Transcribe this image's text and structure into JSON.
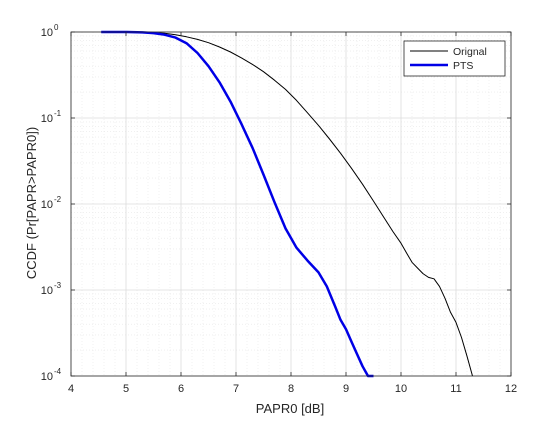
{
  "chart_data": {
    "type": "line",
    "title": "",
    "xlabel": "PAPR0 [dB]",
    "ylabel": "CCDF (Pr[PAPR>PAPR0])",
    "xlim": [
      4,
      12
    ],
    "ylim": [
      0.0001,
      1
    ],
    "yscale": "log",
    "grid": true,
    "minor_grid": true,
    "legend_position": "top-right",
    "xticks": [
      4,
      5,
      6,
      7,
      8,
      9,
      10,
      11,
      12
    ],
    "xtick_labels": [
      "4",
      "5",
      "6",
      "7",
      "8",
      "9",
      "10",
      "11",
      "12"
    ],
    "yticks": [
      0.0001,
      0.001,
      0.01,
      0.1,
      1
    ],
    "ytick_labels": [
      {
        "base": "10",
        "exp": "-4"
      },
      {
        "base": "10",
        "exp": "-3"
      },
      {
        "base": "10",
        "exp": "-2"
      },
      {
        "base": "10",
        "exp": "-1"
      },
      {
        "base": "10",
        "exp": "0"
      }
    ],
    "series": [
      {
        "name": "Orignal",
        "color": "#000000",
        "line_width": 1,
        "x": [
          4.55,
          5.0,
          5.3,
          5.5,
          5.7,
          5.9,
          6.1,
          6.3,
          6.5,
          6.7,
          6.9,
          7.1,
          7.3,
          7.5,
          7.7,
          7.9,
          8.1,
          8.3,
          8.5,
          8.7,
          8.9,
          9.1,
          9.3,
          9.5,
          9.7,
          9.85,
          10.0,
          10.1,
          10.2,
          10.3,
          10.4,
          10.5,
          10.6,
          10.7,
          10.8,
          10.9,
          11.0,
          11.1,
          11.2,
          11.3
        ],
        "y": [
          1.0,
          1.0,
          0.995,
          0.985,
          0.965,
          0.93,
          0.88,
          0.82,
          0.75,
          0.67,
          0.585,
          0.5,
          0.42,
          0.345,
          0.275,
          0.215,
          0.16,
          0.115,
          0.082,
          0.057,
          0.039,
          0.026,
          0.017,
          0.0108,
          0.0068,
          0.0048,
          0.0035,
          0.0027,
          0.0021,
          0.0018,
          0.00155,
          0.0014,
          0.00135,
          0.0011,
          0.0008,
          0.00055,
          0.00042,
          0.00028,
          0.00017,
          0.0001
        ]
      },
      {
        "name": "PTS",
        "color": "#0000e6",
        "line_width": 2.5,
        "x": [
          4.55,
          5.0,
          5.3,
          5.5,
          5.7,
          5.9,
          6.1,
          6.3,
          6.5,
          6.7,
          6.9,
          7.1,
          7.3,
          7.5,
          7.7,
          7.9,
          8.1,
          8.3,
          8.5,
          8.65,
          8.8,
          8.9,
          9.0,
          9.1,
          9.2,
          9.3,
          9.4,
          9.5
        ],
        "y": [
          1.0,
          1.0,
          0.99,
          0.97,
          0.93,
          0.86,
          0.74,
          0.57,
          0.4,
          0.26,
          0.155,
          0.085,
          0.045,
          0.022,
          0.0105,
          0.0052,
          0.0031,
          0.0022,
          0.0016,
          0.0011,
          0.00065,
          0.00045,
          0.00035,
          0.00025,
          0.00018,
          0.00013,
          0.0001,
          0.0001
        ]
      }
    ]
  }
}
